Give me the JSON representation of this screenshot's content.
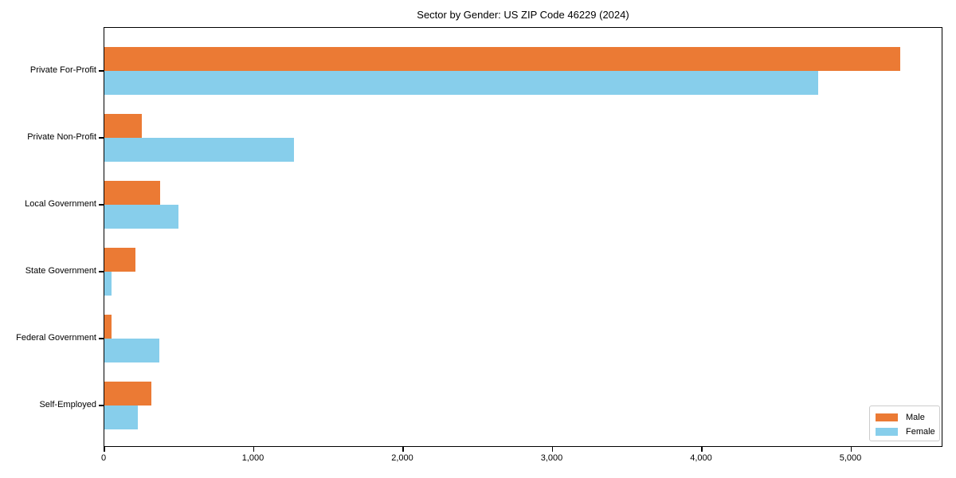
{
  "chart_data": {
    "type": "bar",
    "orientation": "horizontal",
    "title": "Sector by Gender: US ZIP Code 46229 (2024)",
    "xlabel": "",
    "ylabel": "",
    "grid": false,
    "categories": [
      "Private For-Profit",
      "Private Non-Profit",
      "Local Government",
      "State Government",
      "Federal Government",
      "Self-Employed"
    ],
    "series": [
      {
        "name": "Male",
        "color": "#EB7A34",
        "values": [
          5330,
          250,
          375,
          210,
          50,
          315
        ]
      },
      {
        "name": "Female",
        "color": "#87CEEB",
        "values": [
          4780,
          1270,
          495,
          48,
          370,
          225
        ]
      }
    ],
    "xlim": [
      0,
      5600
    ],
    "xticks": [
      0,
      1000,
      2000,
      3000,
      4000,
      5000
    ],
    "xtick_labels": [
      "0",
      "1,000",
      "2,000",
      "3,000",
      "4,000",
      "5,000"
    ],
    "legend": {
      "position": "lower right",
      "entries": [
        "Male",
        "Female"
      ]
    }
  },
  "colors": {
    "axis": "#000000",
    "legend_border": "#cccccc",
    "background": "#ffffff",
    "male": "#EB7A34",
    "female": "#87CEEB"
  }
}
